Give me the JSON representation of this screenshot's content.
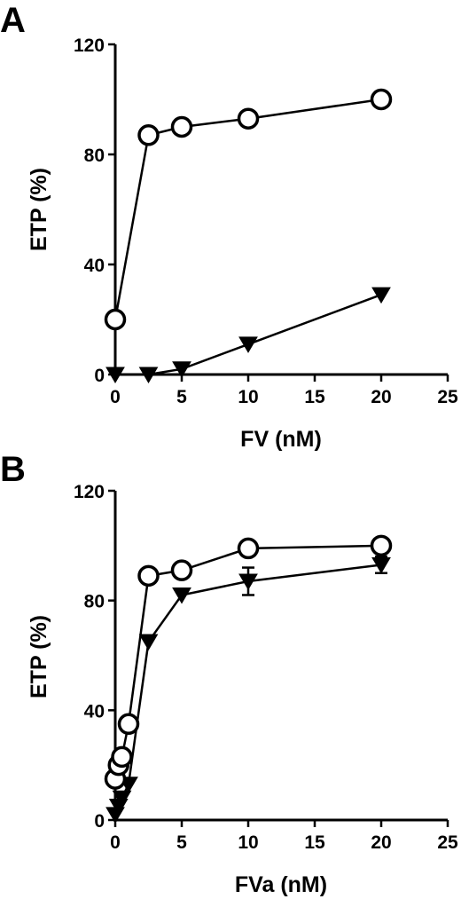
{
  "chart_data": [
    {
      "type": "line",
      "panel_label": "A",
      "xlabel": "FV (nM)",
      "ylabel": "ETP (%)",
      "xlim": [
        0,
        25
      ],
      "ylim": [
        0,
        120
      ],
      "xticks": [
        0,
        5,
        10,
        15,
        20,
        25
      ],
      "yticks": [
        0,
        40,
        80,
        120
      ],
      "series": [
        {
          "marker": "open-circle",
          "x": [
            0,
            2.5,
            5,
            10,
            20
          ],
          "values": [
            20,
            87,
            90,
            93,
            100
          ]
        },
        {
          "marker": "filled-triangle-down",
          "x": [
            0,
            2.5,
            5,
            10,
            20
          ],
          "values": [
            0,
            0,
            2,
            11,
            29
          ]
        }
      ]
    },
    {
      "type": "line",
      "panel_label": "B",
      "xlabel": "FVa (nM)",
      "ylabel": "ETP (%)",
      "xlim": [
        0,
        25
      ],
      "ylim": [
        0,
        120
      ],
      "xticks": [
        0,
        5,
        10,
        15,
        20,
        25
      ],
      "yticks": [
        0,
        40,
        80,
        120
      ],
      "series": [
        {
          "marker": "open-circle",
          "x": [
            0,
            0.25,
            0.5,
            1,
            2.5,
            5,
            10,
            20
          ],
          "values": [
            15,
            20,
            23,
            35,
            89,
            91,
            99,
            100
          ],
          "error": [
            0,
            0,
            0,
            0,
            0,
            0,
            0,
            2
          ]
        },
        {
          "marker": "filled-triangle-down",
          "x": [
            0,
            0.25,
            0.5,
            1,
            2.5,
            5,
            10,
            20
          ],
          "values": [
            2,
            5,
            8,
            13,
            65,
            82,
            87,
            93
          ],
          "error": [
            0,
            0,
            0,
            0,
            0,
            0,
            5,
            3
          ]
        }
      ]
    }
  ]
}
